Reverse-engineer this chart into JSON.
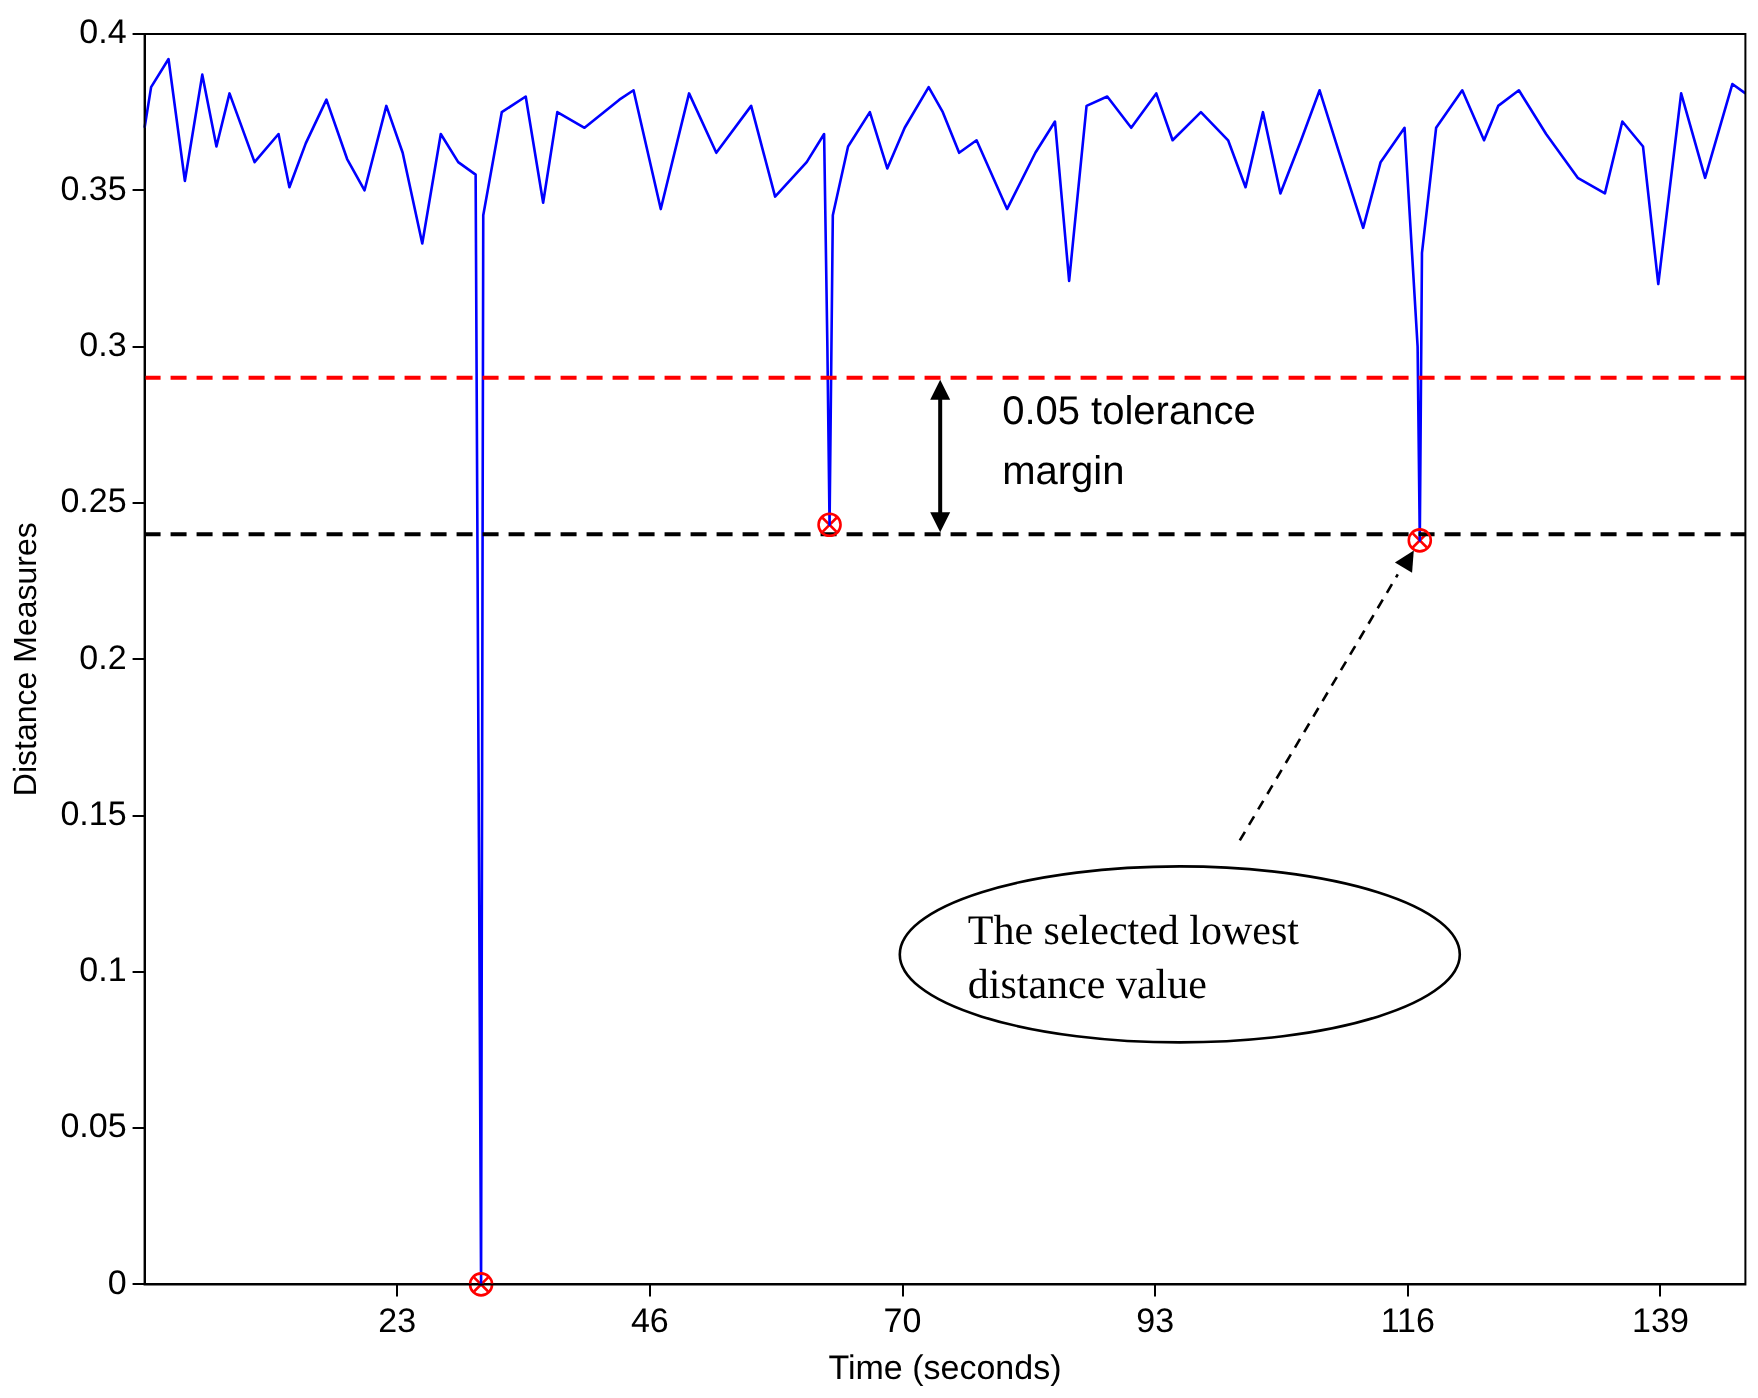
{
  "chart_data": {
    "type": "line",
    "xlabel": "Time (seconds)",
    "ylabel": "Distance Measures",
    "xlim": [
      0,
      147
    ],
    "xticks": [
      {
        "value": 23.2,
        "label": "23"
      },
      {
        "value": 46.4,
        "label": "46"
      },
      {
        "value": 69.6,
        "label": "70"
      },
      {
        "value": 92.8,
        "label": "93"
      },
      {
        "value": 116,
        "label": "116"
      },
      {
        "value": 139.2,
        "label": "139"
      }
    ],
    "ylim": [
      0,
      0.4
    ],
    "yticks": [
      0,
      0.05,
      0.1,
      0.15,
      0.2,
      0.25,
      0.3,
      0.35,
      0.4
    ],
    "grid": false,
    "legend": false,
    "series": [
      {
        "color": "#0000ff",
        "marker": "none",
        "line_style": "solid",
        "x": [
          0,
          0.6,
          2.2,
          3.7,
          5.3,
          6.6,
          7.8,
          10.1,
          12.3,
          13.3,
          14.8,
          16.7,
          18.6,
          20.2,
          22.2,
          23.7,
          25.5,
          27.2,
          28.8,
          30.4,
          30.7,
          30.9,
          31.1,
          32.8,
          35.0,
          36.6,
          37.9,
          40.4,
          43.6,
          44.9,
          47.4,
          50.0,
          52.5,
          55.7,
          57.9,
          60.8,
          62.4,
          62.7,
          62.9,
          63.2,
          64.6,
          66.6,
          68.2,
          69.8,
          72.0,
          73.3,
          74.8,
          76.4,
          79.2,
          81.8,
          83.6,
          84.9,
          86.5,
          88.4,
          90.6,
          92.9,
          94.4,
          97.0,
          99.5,
          101.1,
          102.7,
          104.3,
          106.2,
          107.9,
          109.7,
          111.9,
          113.5,
          115.7,
          116.9,
          117.1,
          117.3,
          118.6,
          121.0,
          123.0,
          124.3,
          126.2,
          128.7,
          131.6,
          134.1,
          135.7,
          137.6,
          139.0,
          141.1,
          143.3,
          145.8,
          147
        ],
        "values": [
          0.37,
          0.383,
          0.392,
          0.353,
          0.387,
          0.364,
          0.381,
          0.359,
          0.368,
          0.351,
          0.365,
          0.379,
          0.36,
          0.35,
          0.377,
          0.362,
          0.333,
          0.368,
          0.359,
          0.355,
          0.143,
          0,
          0.342,
          0.375,
          0.38,
          0.346,
          0.375,
          0.37,
          0.379,
          0.382,
          0.344,
          0.381,
          0.362,
          0.377,
          0.348,
          0.359,
          0.368,
          0.3,
          0.243,
          0.342,
          0.364,
          0.375,
          0.357,
          0.37,
          0.383,
          0.375,
          0.362,
          0.366,
          0.344,
          0.362,
          0.372,
          0.321,
          0.377,
          0.38,
          0.37,
          0.381,
          0.366,
          0.375,
          0.366,
          0.351,
          0.375,
          0.349,
          0.366,
          0.382,
          0.362,
          0.338,
          0.359,
          0.37,
          0.3,
          0.238,
          0.33,
          0.37,
          0.382,
          0.366,
          0.377,
          0.382,
          0.368,
          0.354,
          0.349,
          0.372,
          0.364,
          0.32,
          0.381,
          0.354,
          0.384,
          0.381
        ]
      },
      {
        "type": "scatter",
        "color": "#ff0000",
        "marker": "cross",
        "x": [
          30.9,
          62.9,
          117.1
        ],
        "values": [
          0,
          0.243,
          0.238
        ]
      }
    ],
    "ref_lines": [
      {
        "axis": "y",
        "value": 0.29,
        "color": "#ff0000",
        "line_style": "dashed"
      },
      {
        "axis": "y",
        "value": 0.24,
        "color": "#000000",
        "line_style": "dashed"
      }
    ],
    "annotations": [
      "0.05 tolerance margin",
      "The selected lowest distance value"
    ]
  }
}
